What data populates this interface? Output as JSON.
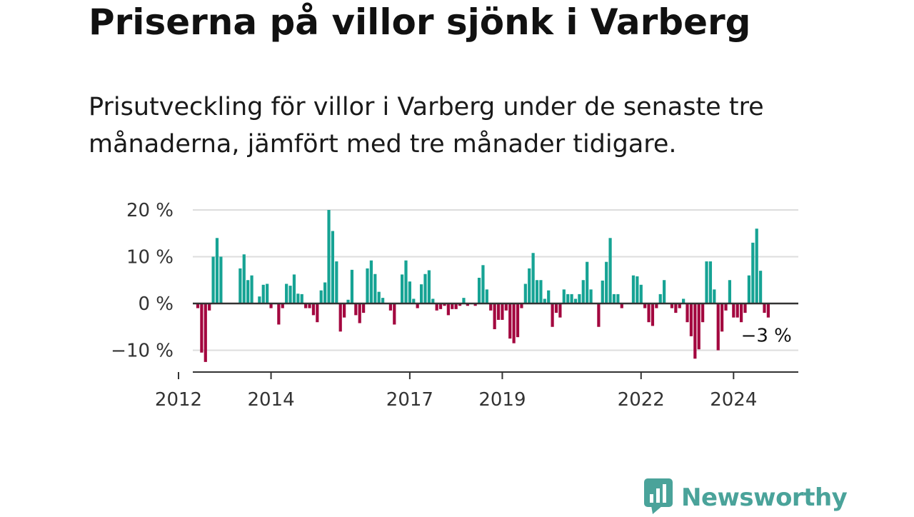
{
  "title": "Priserna på villor sjönk i Varberg",
  "subtitle": "Prisutveckling för villor i Varberg under de senaste tre månaderna, jämfört med tre månader tidigare.",
  "brand": {
    "name": "Newsworthy",
    "icon": "bar-chart-speech-icon",
    "color": "#4aa39a"
  },
  "colors": {
    "positive": "#16a394",
    "negative": "#a3073f",
    "grid": "#dddddd",
    "zero_line": "#333333"
  },
  "chart_data": {
    "type": "bar",
    "ylabel": "",
    "xlabel": "",
    "ylim": [
      -14,
      21
    ],
    "yticks": [
      {
        "value": 20,
        "label": "20 %"
      },
      {
        "value": 10,
        "label": "10 %"
      },
      {
        "value": 0,
        "label": "0 %"
      },
      {
        "value": -10,
        "label": "−10 %"
      }
    ],
    "xlim": [
      2012.0,
      2025.4
    ],
    "xticks": [
      {
        "value": 2012,
        "label": "2012"
      },
      {
        "value": 2014,
        "label": "2014"
      },
      {
        "value": 2017,
        "label": "2017"
      },
      {
        "value": 2019,
        "label": "2019"
      },
      {
        "value": 2022,
        "label": "2022"
      },
      {
        "value": 2024,
        "label": "2024"
      }
    ],
    "grid": true,
    "start": "2012-06",
    "frequency": "monthly",
    "values": [
      -1,
      -10.5,
      -12.5,
      -1.5,
      10,
      14,
      10,
      0,
      0,
      0,
      0,
      7.5,
      10.5,
      5,
      6,
      0,
      1.5,
      4,
      4.2,
      -1,
      0,
      -4.5,
      -1,
      4.2,
      3.8,
      6.2,
      2.1,
      2,
      -1,
      -1,
      -2.5,
      -4,
      2.8,
      4.5,
      20,
      15.5,
      9,
      -6,
      -3,
      0.8,
      7.2,
      -2.5,
      -4.2,
      -2,
      7.5,
      9.2,
      6.3,
      2.5,
      1.2,
      0,
      -1.5,
      -4.5,
      0,
      6.2,
      9.2,
      4.7,
      1,
      -1,
      4.1,
      6.3,
      7.1,
      1,
      -1.5,
      -1.2,
      -0.5,
      -2.5,
      -1.2,
      -1.2,
      -0.5,
      1.2,
      -0.5,
      0,
      -0.5,
      5.5,
      8.2,
      3,
      -1.5,
      -5.5,
      -3.5,
      -3.5,
      -1.5,
      -7.5,
      -8.5,
      -7.2,
      -1,
      4.2,
      7.5,
      10.8,
      5,
      5,
      1,
      2.8,
      -5,
      -2,
      -3,
      3,
      2,
      2,
      1,
      2,
      5,
      8.9,
      3,
      0,
      -5,
      4.9,
      8.9,
      14,
      2,
      2,
      -1,
      0,
      0,
      6,
      5.8,
      4,
      -1,
      -4,
      -4.8,
      -1,
      2,
      5,
      0,
      -1,
      -2,
      -1,
      1,
      -4,
      -7,
      -11.8,
      -9.8,
      -4,
      9,
      9,
      3,
      -10,
      -6,
      -1.5,
      5,
      -3,
      -3,
      -4,
      -2,
      6,
      13,
      16,
      7,
      -2,
      -3
    ],
    "annotations": [
      {
        "text": "−3 %",
        "target": "last"
      }
    ]
  }
}
